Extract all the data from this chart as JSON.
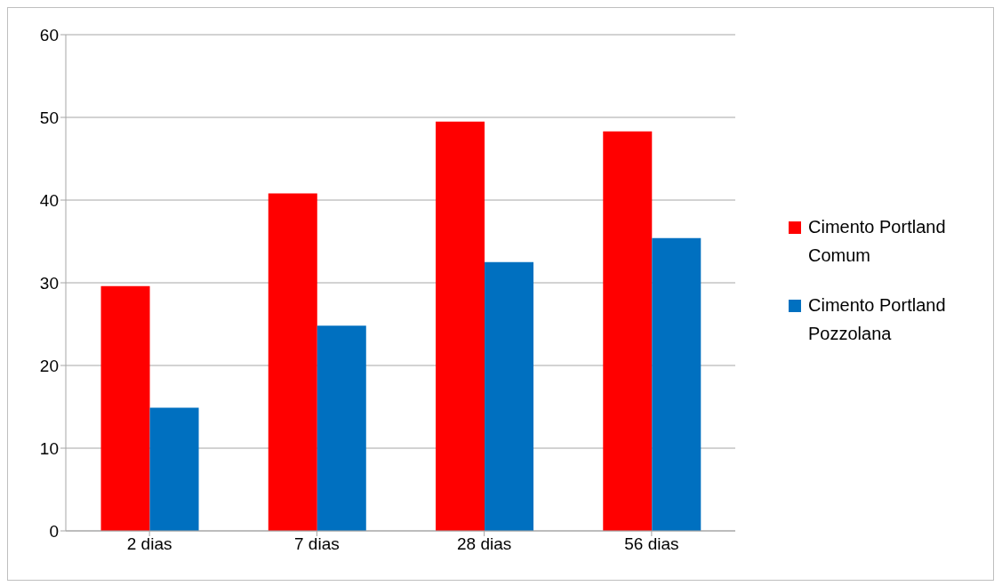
{
  "chart_data": {
    "type": "bar",
    "categories": [
      "2 dias",
      "7 dias",
      "28 dias",
      "56 dias"
    ],
    "series": [
      {
        "name": "Cimento Portland Comum",
        "color": "#ff0000",
        "values": [
          29.6,
          40.8,
          49.5,
          48.3
        ]
      },
      {
        "name": "Cimento Portland Pozzolana",
        "color": "#0070c0",
        "values": [
          14.9,
          24.8,
          32.5,
          35.4
        ]
      }
    ],
    "ylim": [
      0,
      60
    ],
    "yticks": [
      0,
      10,
      20,
      30,
      40,
      50,
      60
    ],
    "grid": "y",
    "legend": "right"
  }
}
